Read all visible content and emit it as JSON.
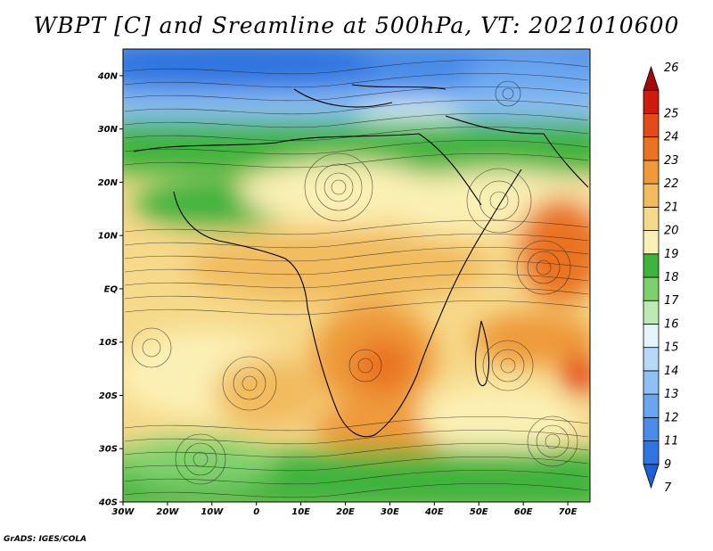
{
  "title": "WBPT [C] and Sreamline at 500hPa, VT: 2021010600",
  "credit": "GrADS: IGES/COLA",
  "map": {
    "lat_ticks": [
      {
        "value": 40,
        "label": "40N"
      },
      {
        "value": 30,
        "label": "30N"
      },
      {
        "value": 20,
        "label": "20N"
      },
      {
        "value": 10,
        "label": "10N"
      },
      {
        "value": 0,
        "label": "EQ"
      },
      {
        "value": -10,
        "label": "10S"
      },
      {
        "value": -20,
        "label": "20S"
      },
      {
        "value": -30,
        "label": "30S"
      },
      {
        "value": -40,
        "label": "40S"
      }
    ],
    "lon_ticks": [
      {
        "value": -30,
        "label": "30W"
      },
      {
        "value": -20,
        "label": "20W"
      },
      {
        "value": -10,
        "label": "10W"
      },
      {
        "value": 0,
        "label": "0"
      },
      {
        "value": 10,
        "label": "10E"
      },
      {
        "value": 20,
        "label": "20E"
      },
      {
        "value": 30,
        "label": "30E"
      },
      {
        "value": 40,
        "label": "40E"
      },
      {
        "value": 50,
        "label": "50E"
      },
      {
        "value": 60,
        "label": "60E"
      },
      {
        "value": 70,
        "label": "70E"
      }
    ],
    "colorbar": [
      {
        "label": "7",
        "color": "#1f5fd6"
      },
      {
        "label": "9",
        "color": "#2f74e0"
      },
      {
        "label": "11",
        "color": "#4a8ce8"
      },
      {
        "label": "12",
        "color": "#6aa6ef"
      },
      {
        "label": "13",
        "color": "#8fc0f4"
      },
      {
        "label": "14",
        "color": "#b7d9f7"
      },
      {
        "label": "15",
        "color": "#e4f4fb"
      },
      {
        "label": "16",
        "color": "#bfe8b4"
      },
      {
        "label": "17",
        "color": "#7fd06c"
      },
      {
        "label": "18",
        "color": "#3fb33c"
      },
      {
        "label": "19",
        "color": "#fbf0b4"
      },
      {
        "label": "20",
        "color": "#f6d98a"
      },
      {
        "label": "21",
        "color": "#f2bb5f"
      },
      {
        "label": "22",
        "color": "#ee9a3a"
      },
      {
        "label": "23",
        "color": "#ea7322"
      },
      {
        "label": "24",
        "color": "#e34b18"
      },
      {
        "label": "25",
        "color": "#cc1c10"
      },
      {
        "label": "26",
        "color": "#a50a0a"
      }
    ]
  }
}
